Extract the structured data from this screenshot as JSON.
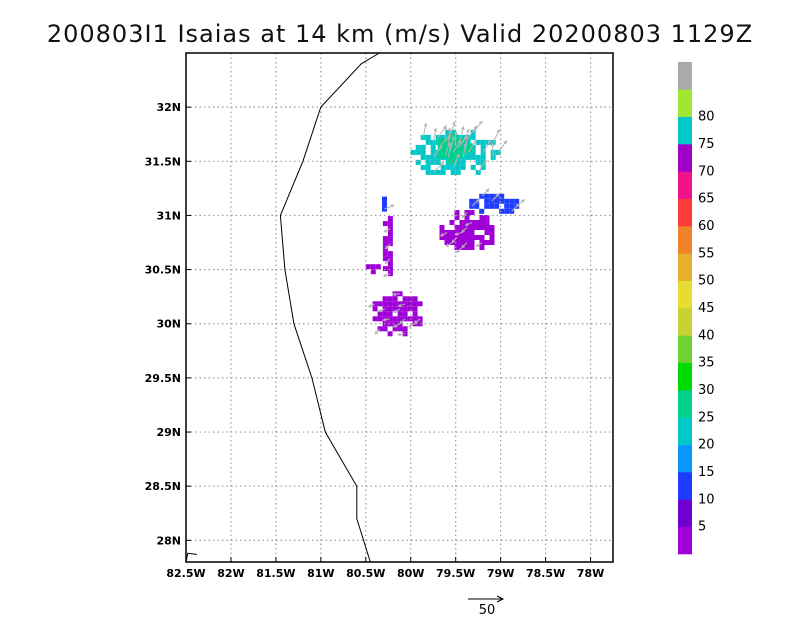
{
  "title": "200803I1  Isaias  at 14 km  (m/s)  Valid 20200803  1129Z",
  "chart_data": {
    "type": "map",
    "variable": "wind speed",
    "units": "m/s",
    "level": "14 km",
    "storm": "Isaias",
    "valid": "20200803 1129Z",
    "lon_range": [
      -82.5,
      -77.75
    ],
    "lat_range": [
      27.8,
      32.5
    ],
    "lon_ticks": [
      {
        "value": -82.5,
        "label": "82.5W"
      },
      {
        "value": -82.0,
        "label": "82W"
      },
      {
        "value": -81.5,
        "label": "81.5W"
      },
      {
        "value": -81.0,
        "label": "81W"
      },
      {
        "value": -80.5,
        "label": "80.5W"
      },
      {
        "value": -80.0,
        "label": "80W"
      },
      {
        "value": -79.5,
        "label": "79.5W"
      },
      {
        "value": -79.0,
        "label": "79W"
      },
      {
        "value": -78.5,
        "label": "78.5W"
      },
      {
        "value": -78.0,
        "label": "78W"
      }
    ],
    "lat_ticks": [
      {
        "value": 28.0,
        "label": "28N"
      },
      {
        "value": 28.5,
        "label": "28.5N"
      },
      {
        "value": 29.0,
        "label": "29N"
      },
      {
        "value": 29.5,
        "label": "29.5N"
      },
      {
        "value": 30.0,
        "label": "30N"
      },
      {
        "value": 30.5,
        "label": "30.5N"
      },
      {
        "value": 31.0,
        "label": "31N"
      },
      {
        "value": 31.5,
        "label": "31.5N"
      },
      {
        "value": 32.0,
        "label": "32N"
      }
    ],
    "grid": true,
    "coastline": [
      [
        -80.35,
        32.5
      ],
      [
        -80.55,
        32.4
      ],
      [
        -81.0,
        32.0
      ],
      [
        -81.2,
        31.5
      ],
      [
        -81.45,
        31.0
      ],
      [
        -81.4,
        30.5
      ],
      [
        -81.3,
        30.0
      ],
      [
        -81.1,
        29.5
      ],
      [
        -80.95,
        29.0
      ],
      [
        -80.6,
        28.5
      ],
      [
        -80.6,
        28.2
      ],
      [
        -80.45,
        27.8
      ]
    ],
    "coastline_bottomleft": [
      [
        -82.5,
        27.8
      ],
      [
        -82.48,
        27.88
      ],
      [
        -82.38,
        27.87
      ]
    ],
    "colorbar": {
      "labels": [
        5,
        10,
        15,
        20,
        25,
        30,
        35,
        40,
        45,
        50,
        55,
        60,
        65,
        70,
        75,
        80
      ],
      "colors": [
        "#a000d8",
        "#6e00d2",
        "#1e3cff",
        "#0a96ff",
        "#00c8c8",
        "#00d28c",
        "#00dc00",
        "#6ed232",
        "#c8d232",
        "#e6dc32",
        "#e6af2d",
        "#f08228",
        "#fa3c3c",
        "#f0148c",
        "#a000c8",
        "#00c8c8",
        "#a0e632",
        "#aaaaaa"
      ]
    },
    "reference_vector": {
      "value": 50,
      "label": "50"
    },
    "wind_regions": [
      {
        "name": "north-teal-cluster",
        "cx": -79.5,
        "cy": 31.57,
        "rx": 0.5,
        "ry": 0.22,
        "color": "#00c8c8",
        "speed": 20
      },
      {
        "name": "north-green-core",
        "cx": -79.5,
        "cy": 31.62,
        "rx": 0.2,
        "ry": 0.14,
        "color": "#00d28c",
        "speed": 25
      },
      {
        "name": "east-blue-band",
        "cx": -79.05,
        "cy": 31.1,
        "rx": 0.3,
        "ry": 0.1,
        "color": "#1e3cff",
        "speed": 10
      },
      {
        "name": "central-purple-blob",
        "cx": -79.35,
        "cy": 30.85,
        "rx": 0.33,
        "ry": 0.2,
        "color": "#a000d8",
        "speed": 5
      },
      {
        "name": "south-purple-blob",
        "cx": -80.15,
        "cy": 30.1,
        "rx": 0.33,
        "ry": 0.2,
        "color": "#a000d8",
        "speed": 5
      },
      {
        "name": "strand-purple",
        "cx": -80.25,
        "cy": 30.72,
        "rx": 0.06,
        "ry": 0.32,
        "color": "#a000d8",
        "speed": 5
      },
      {
        "name": "west-small-purple",
        "cx": -80.42,
        "cy": 30.5,
        "rx": 0.08,
        "ry": 0.05,
        "color": "#a000d8",
        "speed": 5
      },
      {
        "name": "blue-strip",
        "cx": -80.28,
        "cy": 31.1,
        "rx": 0.04,
        "ry": 0.12,
        "color": "#1e3cff",
        "speed": 10
      }
    ]
  }
}
